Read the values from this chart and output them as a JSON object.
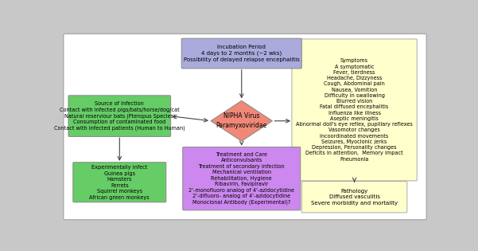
{
  "background_color": "#c8c8c8",
  "inner_bg": "#ffffff",
  "center_text": "NIPHA Virus\nParamyxoviridae",
  "center_color": "#f08878",
  "incubation_text": "Incubation Period\n4 days to 2 months (~2 wks)\nPossibility of delayed relapse encephalitis",
  "incubation_color": "#aaaadd",
  "source_text": "Source of Infection\nContact with infected pigs/bats/horse/dog/cat\nNatural reserviour bats (Pteropus Species)\nConsumption of contaminated food\nContact with infected patients (Human to Human)",
  "source_color": "#66cc66",
  "experiment_text": "Experimentally infect\nGuinea pigs\nHamsters\nFerrets\nSquirrel monkeys\nAfrican green monkeys",
  "experiment_color": "#66cc66",
  "treatment_text": "Treatment and Care\nAnticonvulsants\nTreatment of secondary infection\nMechanical ventilation\nRehabilitation, Hygiene\nRibavirin, Favipiravir\n2'-monofluoro analog of 4'-azidocytidine\n2'-difluoro- analog of 4'-azidocytidine\nMonocional Antibody (Experimental)?",
  "treatment_color": "#cc88ee",
  "symptoms_text": "Symptoms\nA symptomatic\nFever, tierdness\nHeadache, Dizzyness\nCough, Abdominal pain\nNausea, Vomition\nDifficulty in swallowing\nBlurred vision\nFatal diffused encephalitis\nInfluenza like illness\nAseptic meningitis\nAbnormal doll's eye reflex, pupillary reflexes\nVasomotor changes\nIncoordinated movements\nSeizures, Myoclonic jerks\nDepression, Personality changes\nDeficits in attention,  Memory impact\nPneumonia",
  "symptoms_color": "#ffffcc",
  "pathology_text": "Pathology\nDiffused vasculitis\nSevere morbidity and mortality",
  "pathology_color": "#ffffcc",
  "arrow_color": "#444444"
}
